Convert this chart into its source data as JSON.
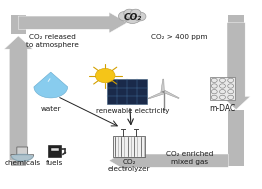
{
  "bg_color": "#ffffff",
  "arrow_color": "#b8b8b8",
  "text_color": "#1a1a1a",
  "cloud_text": "CO₂",
  "label_top_left": "CO₂ released\nto atmosphere",
  "label_top_right": "CO₂ > 400 ppm",
  "label_water": "water",
  "label_renewable": "renewable electricity",
  "label_mdac": "m-DAC",
  "label_chemicals": "chemicals",
  "label_fuels": "fuels",
  "label_electrolyzer": "CO₂\nelectrolyzer",
  "label_enriched": "CO₂ enriched\nmixed gas",
  "figw": 2.62,
  "figh": 1.89,
  "dpi": 100
}
